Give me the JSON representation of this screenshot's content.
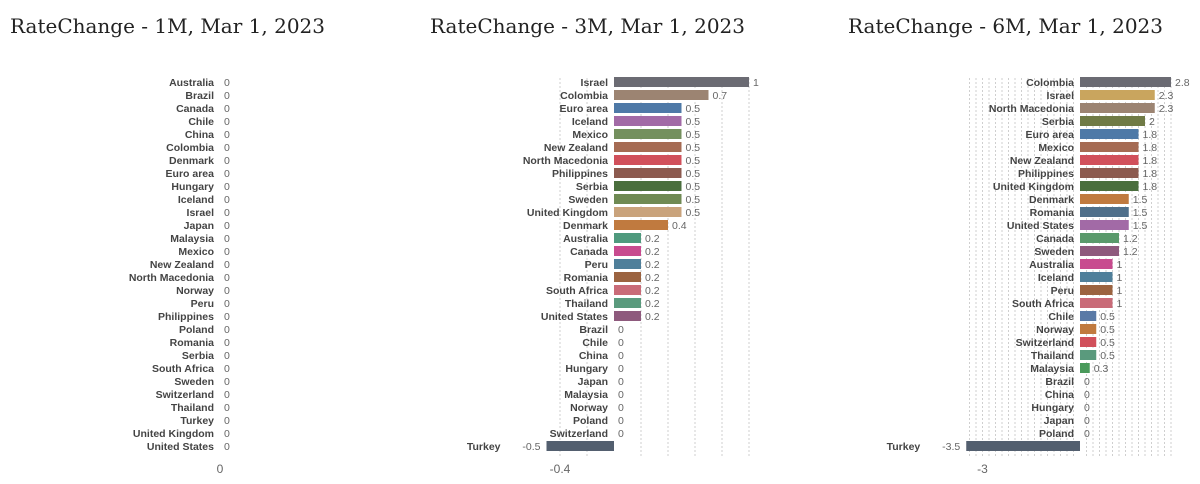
{
  "chart_data": [
    {
      "type": "bar",
      "orientation": "horizontal",
      "title": "RateChange - 1M, Mar 1, 2023",
      "categories": [
        "Australia",
        "Brazil",
        "Canada",
        "Chile",
        "China",
        "Colombia",
        "Denmark",
        "Euro area",
        "Hungary",
        "Iceland",
        "Israel",
        "Japan",
        "Malaysia",
        "Mexico",
        "New Zealand",
        "North Macedonia",
        "Norway",
        "Peru",
        "Philippines",
        "Poland",
        "Romania",
        "Serbia",
        "South Africa",
        "Sweden",
        "Switzerland",
        "Thailand",
        "Turkey",
        "United Kingdom",
        "United States"
      ],
      "values": [
        0,
        0,
        0,
        0,
        0,
        0,
        0,
        0,
        0,
        0,
        0,
        0,
        0,
        0,
        0,
        0,
        0,
        0,
        0,
        0,
        0,
        0,
        0,
        0,
        0,
        0,
        0,
        0,
        0
      ],
      "value_labels": [
        "0",
        "0",
        "0",
        "0",
        "0",
        "0",
        "0",
        "0",
        "0",
        "0",
        "0",
        "0",
        "0",
        "0",
        "0",
        "0",
        "0",
        "0",
        "0",
        "0",
        "0",
        "0",
        "0",
        "0",
        "0",
        "0",
        "0",
        "0",
        "0"
      ],
      "colors": [
        "#6b6b73",
        "#6b6b73",
        "#6b6b73",
        "#6b6b73",
        "#6b6b73",
        "#6b6b73",
        "#6b6b73",
        "#6b6b73",
        "#6b6b73",
        "#6b6b73",
        "#6b6b73",
        "#6b6b73",
        "#6b6b73",
        "#6b6b73",
        "#6b6b73",
        "#6b6b73",
        "#6b6b73",
        "#6b6b73",
        "#6b6b73",
        "#6b6b73",
        "#6b6b73",
        "#6b6b73",
        "#6b6b73",
        "#6b6b73",
        "#6b6b73",
        "#6b6b73",
        "#6b6b73",
        "#6b6b73",
        "#6b6b73"
      ],
      "xlim": [
        0,
        1
      ],
      "xticks": [
        0
      ],
      "xtick_labels": [
        "0"
      ],
      "grid": false
    },
    {
      "type": "bar",
      "orientation": "horizontal",
      "title": "RateChange - 3M, Mar 1, 2023",
      "categories": [
        "Israel",
        "Colombia",
        "Euro area",
        "Iceland",
        "Mexico",
        "New Zealand",
        "North Macedonia",
        "Philippines",
        "Serbia",
        "Sweden",
        "United Kingdom",
        "Denmark",
        "Australia",
        "Canada",
        "Peru",
        "Romania",
        "South Africa",
        "Thailand",
        "United States",
        "Brazil",
        "Chile",
        "China",
        "Hungary",
        "Japan",
        "Malaysia",
        "Norway",
        "Poland",
        "Switzerland",
        "Turkey"
      ],
      "values": [
        1,
        0.7,
        0.5,
        0.5,
        0.5,
        0.5,
        0.5,
        0.5,
        0.5,
        0.5,
        0.5,
        0.4,
        0.2,
        0.2,
        0.2,
        0.2,
        0.2,
        0.2,
        0.2,
        0,
        0,
        0,
        0,
        0,
        0,
        0,
        0,
        0,
        -0.5
      ],
      "value_labels": [
        "1",
        "0.7",
        "0.5",
        "0.5",
        "0.5",
        "0.5",
        "0.5",
        "0.5",
        "0.5",
        "0.5",
        "0.5",
        "0.4",
        "0.2",
        "0.2",
        "0.2",
        "0.2",
        "0.2",
        "0.2",
        "0.2",
        "0",
        "0",
        "0",
        "0",
        "0",
        "0",
        "0",
        "0",
        "0",
        "-0.5"
      ],
      "colors": [
        "#6b6b73",
        "#9c8472",
        "#4e79a7",
        "#a26aa6",
        "#74905e",
        "#a56b53",
        "#d1505b",
        "#8c5a4f",
        "#4a6e3d",
        "#6f8a53",
        "#c9a37c",
        "#c07a3f",
        "#4f9a7e",
        "#c84b8f",
        "#4f7f9a",
        "#9b6340",
        "#c96b78",
        "#5a9a7d",
        "#8e5a7d",
        "#6b6b73",
        "#6b6b73",
        "#6b6b73",
        "#6b6b73",
        "#6b6b73",
        "#6b6b73",
        "#6b6b73",
        "#6b6b73",
        "#6b6b73",
        "#535f6f"
      ],
      "xlim": [
        -0.5,
        1.0
      ],
      "xticks": [
        -0.4
      ],
      "xtick_labels": [
        "-0.4"
      ],
      "grid": true
    },
    {
      "type": "bar",
      "orientation": "horizontal",
      "title": "RateChange - 6M, Mar 1, 2023",
      "categories": [
        "Colombia",
        "Israel",
        "North Macedonia",
        "Serbia",
        "Euro area",
        "Mexico",
        "New Zealand",
        "Philippines",
        "United Kingdom",
        "Denmark",
        "Romania",
        "United States",
        "Canada",
        "Sweden",
        "Australia",
        "Iceland",
        "Peru",
        "South Africa",
        "Chile",
        "Norway",
        "Switzerland",
        "Thailand",
        "Malaysia",
        "Brazil",
        "China",
        "Hungary",
        "Japan",
        "Poland",
        "Turkey"
      ],
      "values": [
        2.8,
        2.3,
        2.3,
        2,
        1.8,
        1.8,
        1.8,
        1.8,
        1.8,
        1.5,
        1.5,
        1.5,
        1.2,
        1.2,
        1,
        1,
        1,
        1,
        0.5,
        0.5,
        0.5,
        0.5,
        0.3,
        0,
        0,
        0,
        0,
        0,
        -3.5
      ],
      "value_labels": [
        "2.8",
        "2.3",
        "2.3",
        "2",
        "1.8",
        "1.8",
        "1.8",
        "1.8",
        "1.8",
        "1.5",
        "1.5",
        "1.5",
        "1.2",
        "1.2",
        "1",
        "1",
        "1",
        "1",
        "0.5",
        "0.5",
        "0.5",
        "0.5",
        "0.3",
        "0",
        "0",
        "0",
        "0",
        "0",
        "-3.5"
      ],
      "colors": [
        "#6b6b73",
        "#c9a55e",
        "#9c8472",
        "#6f7a45",
        "#4e79a7",
        "#a56b53",
        "#d1505b",
        "#8c5a4f",
        "#4a6e3d",
        "#c07a3f",
        "#4f6f8a",
        "#a26aa6",
        "#5a9a6b",
        "#8e5a7d",
        "#c84b8f",
        "#4f7f9a",
        "#9b6340",
        "#c96b78",
        "#5a7aa6",
        "#c07a3f",
        "#d1505b",
        "#5a9a7d",
        "#4a9a5b",
        "#6b6b73",
        "#6b6b73",
        "#6b6b73",
        "#6b6b73",
        "#6b6b73",
        "#535f6f"
      ],
      "xlim": [
        -3.5,
        2.8
      ],
      "xticks": [
        -3
      ],
      "xtick_labels": [
        "-3"
      ],
      "grid": true
    }
  ]
}
